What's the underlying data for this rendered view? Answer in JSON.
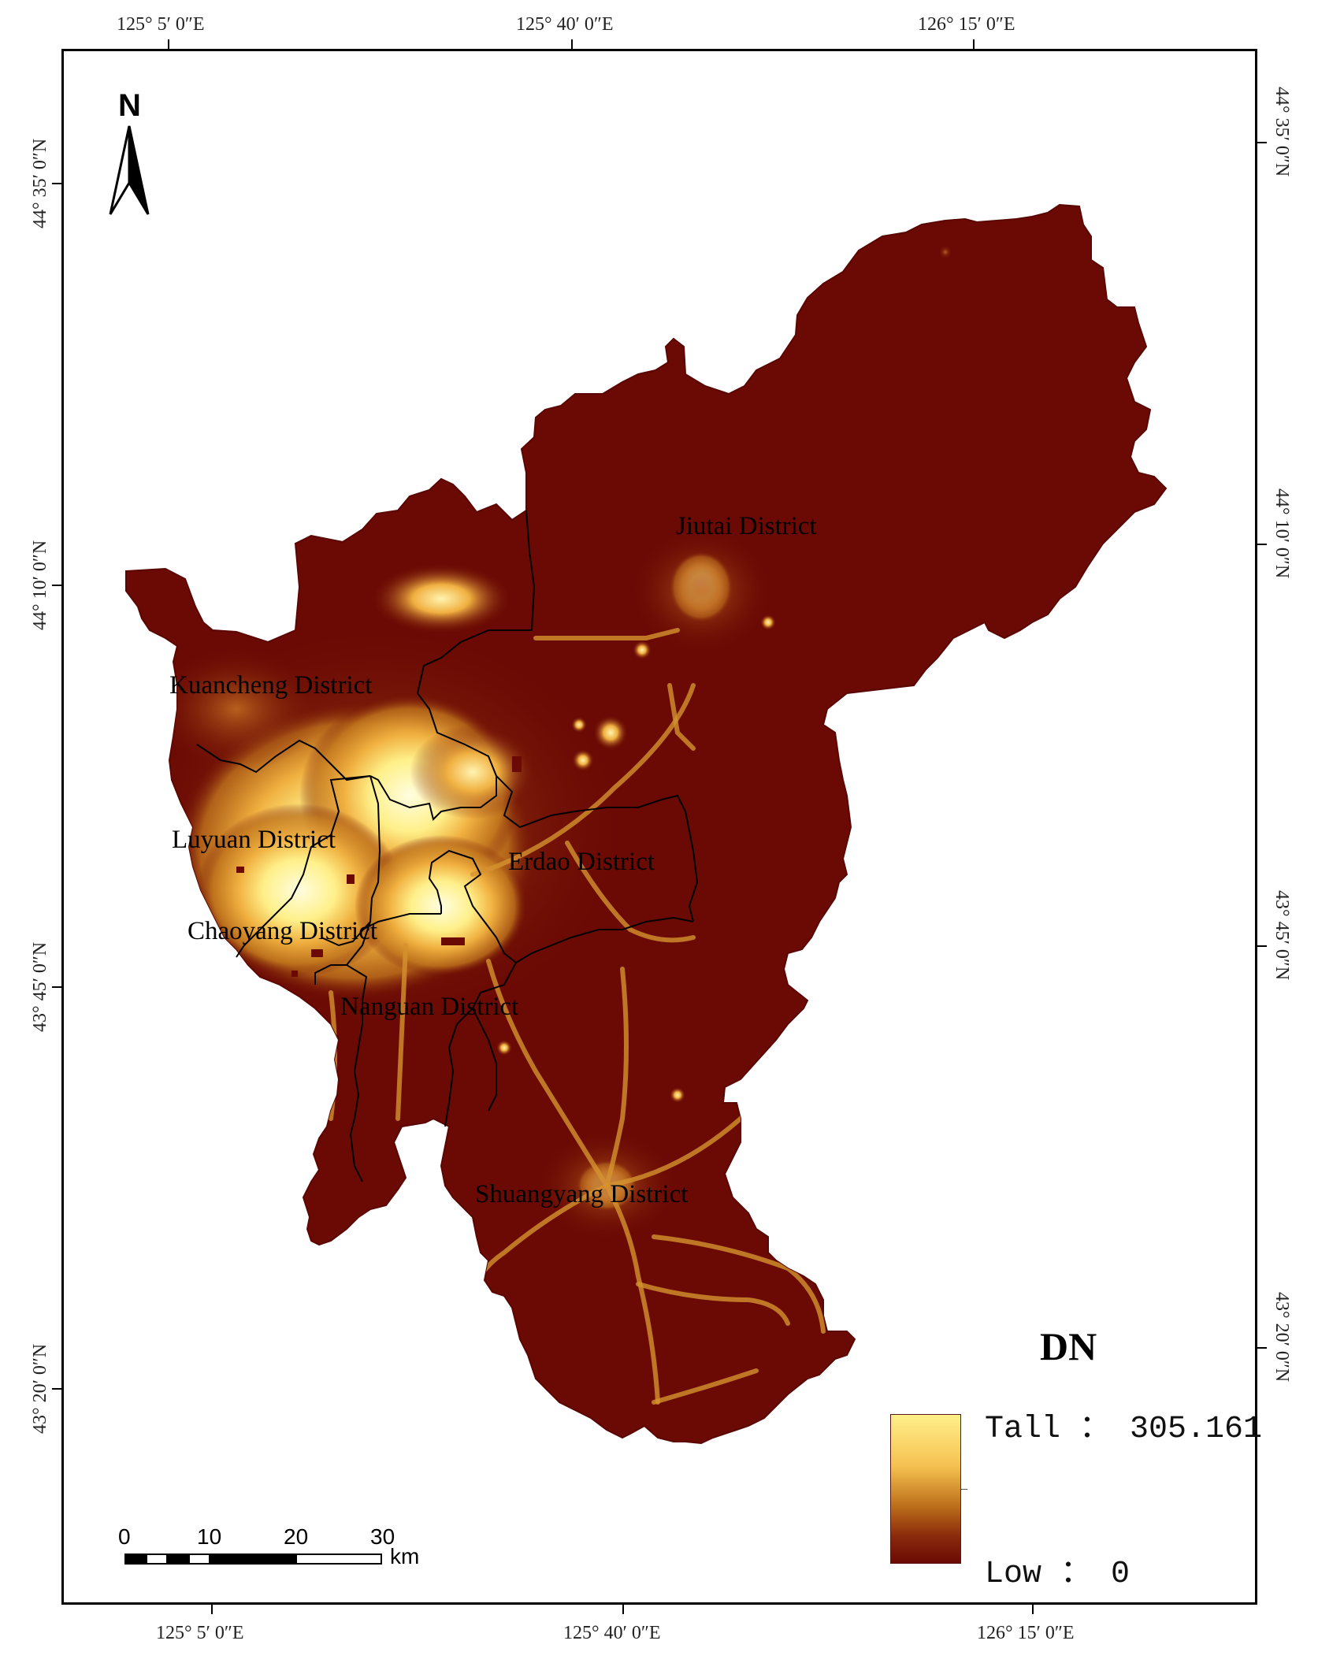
{
  "map": {
    "top_longitudes": [
      "125° 5′ 0″E",
      "125° 40′ 0″E",
      "126° 15′ 0″E"
    ],
    "bottom_longitudes": [
      "125° 5′ 0″E",
      "125° 40′ 0″E",
      "126° 15′ 0″E"
    ],
    "left_latitudes": [
      "44° 35′ 0″N",
      "44° 10′ 0″N",
      "43° 45′ 0″N",
      "43° 20′ 0″N"
    ],
    "right_latitudes": [
      "44° 35′ 0″N",
      "44° 10′ 0″N",
      "43° 45′ 0″N",
      "43° 20′ 0″N"
    ],
    "north_label": "N",
    "districts": [
      {
        "name": "Jiutai District"
      },
      {
        "name": "Kuancheng District"
      },
      {
        "name": "Luyuan District"
      },
      {
        "name": "Erdao District"
      },
      {
        "name": "Chaoyang District"
      },
      {
        "name": "Nanguan District"
      },
      {
        "name": "Shuangyang District"
      }
    ]
  },
  "legend": {
    "title": "DN",
    "high_label": "Tall ： 305.161",
    "low_label": "Low ： 0",
    "high_value": 305.161,
    "low_value": 0,
    "colors": {
      "low": "#6b0a04",
      "mid": "#c0741c",
      "high": "#fff08a"
    }
  },
  "scale_bar": {
    "ticks": [
      "0",
      "10",
      "20",
      "30"
    ],
    "unit": "km"
  },
  "colors": {
    "background_region": "#6b0a04",
    "frame": "#000000"
  }
}
